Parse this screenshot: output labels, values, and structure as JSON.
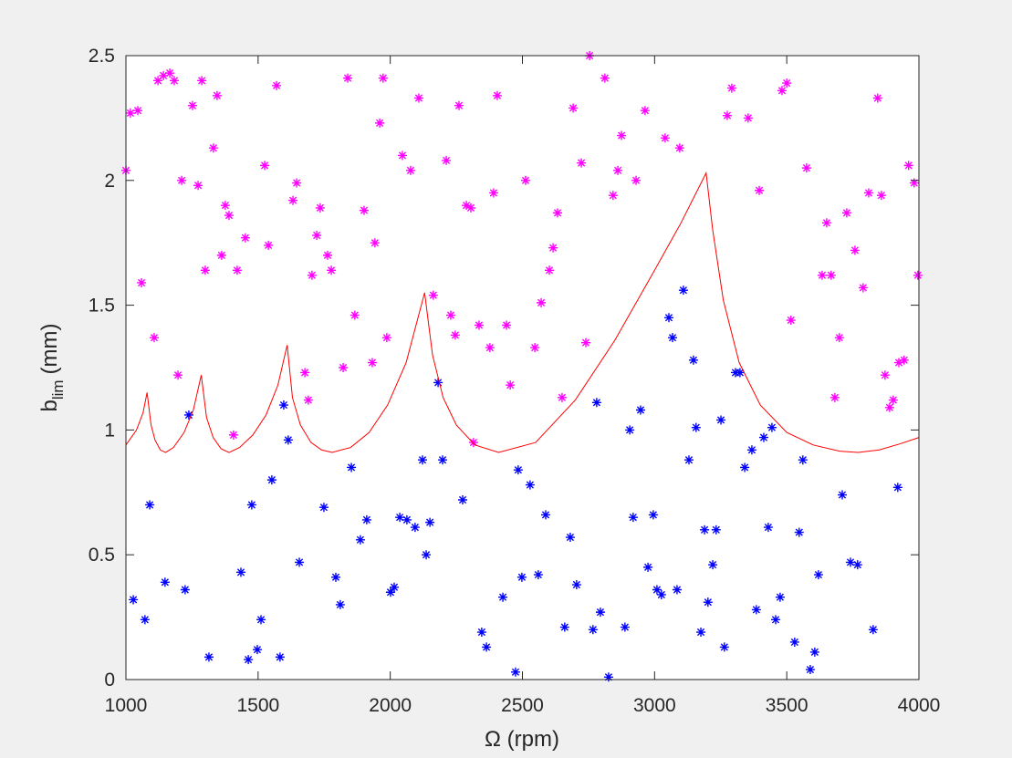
{
  "chart_data": {
    "type": "scatter",
    "xlabel": "Ω (rpm)",
    "ylabel": {
      "base": "b",
      "subscript": "lim",
      "unit": "(mm)"
    },
    "xlim": [
      1000,
      4000
    ],
    "xticks": [
      1000,
      1500,
      2000,
      2500,
      3000,
      3500,
      4000
    ],
    "ylim": [
      0,
      2.5
    ],
    "yticks": [
      0,
      0.5,
      1,
      1.5,
      2,
      2.5
    ],
    "grid": false,
    "series": [
      {
        "color": "#ff00ff",
        "marker": "asterisk",
        "x": [
          1000,
          1017,
          1045,
          1059,
          1107,
          1121,
          1142,
          1166,
          1183,
          1197,
          1211,
          1252,
          1273,
          1287,
          1300,
          1331,
          1345,
          1362,
          1376,
          1390,
          1407,
          1421,
          1452,
          1525,
          1539,
          1570,
          1632,
          1646,
          1677,
          1690,
          1704,
          1722,
          1735,
          1763,
          1777,
          1822,
          1839,
          1866,
          1901,
          1932,
          1942,
          1960,
          1973,
          1987,
          2046,
          2077,
          2108,
          2163,
          2212,
          2229,
          2246,
          2260,
          2288,
          2305,
          2315,
          2336,
          2377,
          2391,
          2405,
          2440,
          2454,
          2512,
          2547,
          2571,
          2602,
          2616,
          2633,
          2650,
          2692,
          2723,
          2740,
          2754,
          2812,
          2843,
          2861,
          2875,
          2930,
          2964,
          3040,
          3095,
          3275,
          3292,
          3354,
          3396,
          3482,
          3500,
          3516,
          3575,
          3634,
          3651,
          3668,
          3682,
          3699,
          3727,
          3758,
          3789,
          3810,
          3844,
          3858,
          3872,
          3889,
          3903,
          3924,
          3944,
          3961,
          3982,
          3996
        ],
        "values": [
          2.04,
          2.27,
          2.28,
          1.59,
          1.37,
          2.4,
          2.42,
          2.43,
          2.4,
          1.22,
          2.0,
          2.3,
          1.98,
          2.4,
          1.64,
          2.13,
          2.34,
          1.7,
          1.9,
          1.86,
          0.98,
          1.64,
          1.77,
          2.06,
          1.74,
          2.38,
          1.92,
          1.99,
          1.23,
          1.12,
          1.62,
          1.78,
          1.89,
          1.7,
          1.64,
          1.25,
          2.41,
          1.46,
          1.88,
          1.27,
          1.75,
          2.23,
          2.41,
          1.37,
          2.1,
          2.04,
          2.33,
          1.54,
          2.08,
          1.46,
          1.38,
          2.3,
          1.9,
          1.89,
          0.95,
          1.42,
          1.33,
          1.95,
          2.34,
          1.42,
          1.18,
          2.0,
          1.33,
          1.51,
          1.64,
          1.73,
          1.87,
          1.13,
          2.29,
          2.07,
          1.35,
          2.5,
          2.41,
          1.94,
          2.04,
          2.18,
          2.0,
          2.28,
          2.17,
          2.13,
          2.26,
          2.37,
          2.25,
          1.96,
          2.36,
          2.39,
          1.44,
          2.05,
          1.62,
          1.83,
          1.62,
          1.13,
          1.37,
          1.87,
          1.72,
          1.57,
          1.95,
          2.33,
          1.94,
          1.22,
          1.09,
          1.12,
          1.27,
          1.28,
          2.06,
          1.99,
          1.62
        ]
      },
      {
        "color": "#0000ff",
        "marker": "asterisk",
        "x": [
          1028,
          1072,
          1090,
          1148,
          1224,
          1238,
          1314,
          1435,
          1463,
          1476,
          1497,
          1511,
          1552,
          1583,
          1597,
          1614,
          1656,
          1749,
          1794,
          1811,
          1853,
          1887,
          1911,
          2001,
          2015,
          2036,
          2063,
          2094,
          2122,
          2136,
          2150,
          2181,
          2198,
          2274,
          2346,
          2364,
          2426,
          2474,
          2484,
          2498,
          2529,
          2560,
          2588,
          2660,
          2681,
          2705,
          2767,
          2781,
          2795,
          2826,
          2888,
          2906,
          2919,
          2947,
          2975,
          2995,
          3009,
          3026,
          3054,
          3068,
          3085,
          3109,
          3130,
          3147,
          3157,
          3175,
          3189,
          3202,
          3220,
          3233,
          3251,
          3264,
          3306,
          3323,
          3341,
          3368,
          3385,
          3413,
          3430,
          3444,
          3458,
          3475,
          3530,
          3547,
          3561,
          3589,
          3606,
          3620,
          3710,
          3741,
          3768,
          3827,
          3920
        ],
        "values": [
          0.32,
          0.24,
          0.7,
          0.39,
          0.36,
          1.06,
          0.09,
          0.43,
          0.08,
          0.7,
          0.12,
          0.24,
          0.8,
          0.09,
          1.1,
          0.96,
          0.47,
          0.69,
          0.41,
          0.3,
          0.85,
          0.56,
          0.64,
          0.35,
          0.37,
          0.65,
          0.64,
          0.61,
          0.88,
          0.5,
          0.63,
          1.19,
          0.88,
          0.72,
          0.19,
          0.13,
          0.33,
          0.03,
          0.84,
          0.41,
          0.78,
          0.42,
          0.66,
          0.21,
          0.57,
          0.38,
          0.2,
          1.11,
          0.27,
          0.01,
          0.21,
          1.0,
          0.65,
          1.08,
          0.45,
          0.66,
          0.36,
          0.34,
          1.45,
          1.37,
          0.36,
          1.56,
          0.88,
          1.28,
          1.01,
          0.19,
          0.6,
          0.31,
          0.46,
          0.6,
          1.04,
          0.13,
          1.23,
          1.23,
          0.85,
          0.92,
          0.28,
          0.97,
          0.61,
          1.01,
          0.24,
          0.33,
          0.15,
          0.59,
          0.88,
          0.04,
          0.11,
          0.42,
          0.74,
          0.47,
          0.46,
          0.2,
          0.77
        ]
      },
      {
        "color": "#ff0000",
        "marker": "line",
        "x": [
          1000,
          1040,
          1065,
          1080,
          1095,
          1110,
          1130,
          1150,
          1180,
          1220,
          1255,
          1285,
          1305,
          1330,
          1360,
          1390,
          1430,
          1480,
          1530,
          1575,
          1610,
          1630,
          1660,
          1700,
          1740,
          1780,
          1850,
          1920,
          1990,
          2060,
          2130,
          2160,
          2200,
          2250,
          2320,
          2410,
          2550,
          2700,
          2850,
          3000,
          3100,
          3195,
          3220,
          3260,
          3320,
          3400,
          3500,
          3600,
          3700,
          3770,
          3850,
          3930,
          4000
        ],
        "values": [
          0.94,
          1.0,
          1.07,
          1.15,
          1.02,
          0.96,
          0.92,
          0.91,
          0.93,
          0.99,
          1.08,
          1.22,
          1.05,
          0.97,
          0.925,
          0.91,
          0.93,
          0.98,
          1.06,
          1.18,
          1.34,
          1.13,
          1.02,
          0.95,
          0.92,
          0.91,
          0.93,
          0.99,
          1.1,
          1.27,
          1.55,
          1.3,
          1.13,
          1.02,
          0.94,
          0.91,
          0.95,
          1.12,
          1.36,
          1.64,
          1.83,
          2.03,
          1.8,
          1.52,
          1.27,
          1.1,
          0.99,
          0.94,
          0.915,
          0.91,
          0.92,
          0.945,
          0.97
        ]
      }
    ]
  }
}
